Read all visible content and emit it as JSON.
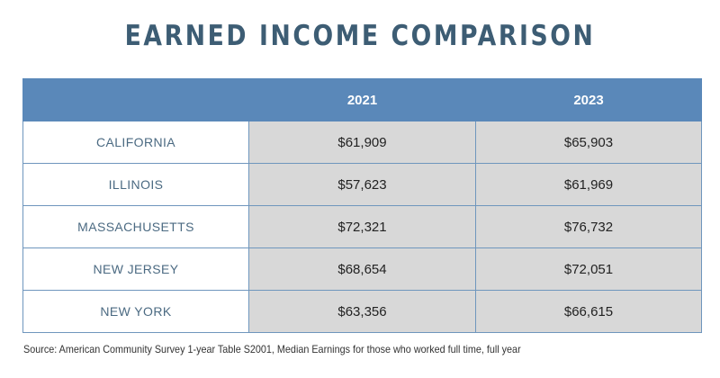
{
  "title": "EARNED INCOME COMPARISON",
  "chart_data": {
    "type": "table",
    "title": "EARNED INCOME COMPARISON",
    "columns": [
      "",
      "2021",
      "2023"
    ],
    "rows": [
      {
        "state": "CALIFORNIA",
        "values": [
          "$61,909",
          "$65,903"
        ]
      },
      {
        "state": "ILLINOIS",
        "values": [
          "$57,623",
          "$61,969"
        ]
      },
      {
        "state": "MASSACHUSETTS",
        "values": [
          "$72,321",
          "$76,732"
        ]
      },
      {
        "state": "NEW JERSEY",
        "values": [
          "$68,654",
          "$72,051"
        ]
      },
      {
        "state": "NEW YORK",
        "values": [
          "$63,356",
          "$66,615"
        ]
      }
    ]
  },
  "source": "Source: American Community Survey 1-year Table S2001, Median Earnings for those who worked full time, full year",
  "colors": {
    "header_bg": "#5a88b9",
    "title": "#3d5d74",
    "value_cell_bg": "#d8d8d8",
    "state_text": "#4b6a82"
  }
}
